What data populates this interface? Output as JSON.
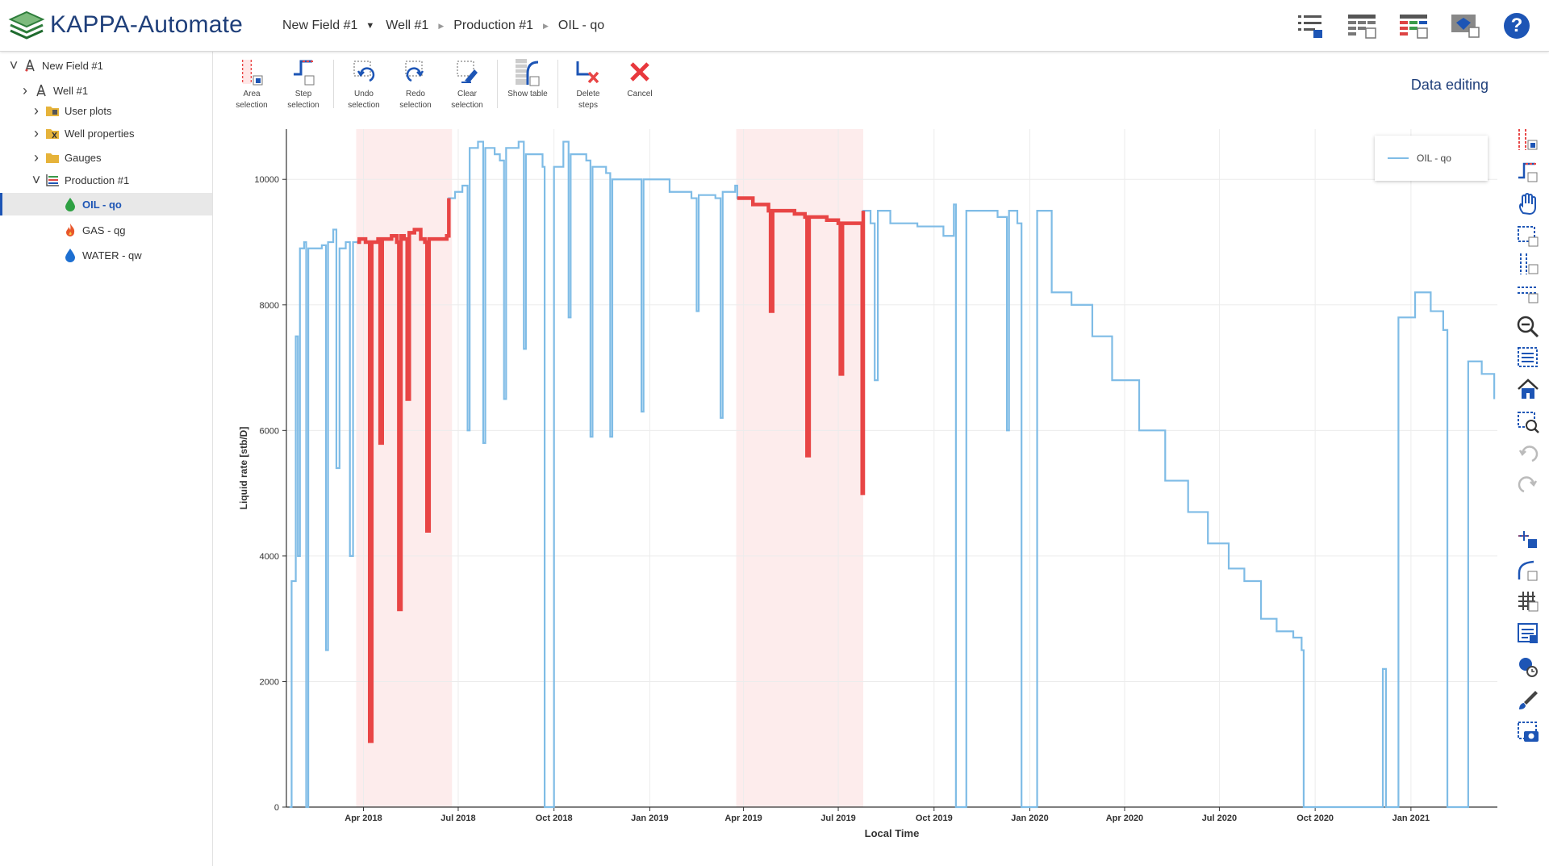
{
  "app": {
    "title": "KAPPA-Automate"
  },
  "breadcrumb": [
    {
      "label": "New Field #1",
      "sep": "down"
    },
    {
      "label": "Well #1",
      "sep": "right"
    },
    {
      "label": "Production #1",
      "sep": "right"
    },
    {
      "label": "OIL - qo",
      "sep": ""
    }
  ],
  "header_icons": [
    "list-view-icon",
    "table-view-icon",
    "colored-table-icon",
    "monitor-diamond-icon",
    "help-icon"
  ],
  "help_label": "?",
  "sidebar": {
    "items": [
      {
        "label": "New Field #1",
        "icon": "field-rig-icon",
        "level": 0,
        "chevron": "down"
      },
      {
        "label": "Well #1",
        "icon": "well-rig-icon",
        "level": 1,
        "chevron": "right"
      },
      {
        "label": "User plots",
        "icon": "folder-plots-icon",
        "level": 2,
        "chevron": "right"
      },
      {
        "label": "Well properties",
        "icon": "folder-properties-icon",
        "level": 2,
        "chevron": "right"
      },
      {
        "label": "Gauges",
        "icon": "folder-gauges-icon",
        "level": 2,
        "chevron": "right"
      },
      {
        "label": "Production #1",
        "icon": "production-icon",
        "level": 2,
        "chevron": "down"
      },
      {
        "label": "OIL - qo",
        "icon": "oil-drop-icon",
        "level": 3,
        "chevron": "",
        "selected": true
      },
      {
        "label": "GAS - qg",
        "icon": "gas-flame-icon",
        "level": 3,
        "chevron": ""
      },
      {
        "label": "WATER - qw",
        "icon": "water-drop-icon",
        "level": 3,
        "chevron": ""
      }
    ]
  },
  "toolbar": {
    "tools": [
      {
        "label": "Area\nselection",
        "icon": "area-selection-icon"
      },
      {
        "label": "Step\nselection",
        "icon": "step-selection-icon"
      },
      {
        "sep": true
      },
      {
        "label": "Undo\nselection",
        "icon": "undo-selection-icon"
      },
      {
        "label": "Redo\nselection",
        "icon": "redo-selection-icon"
      },
      {
        "label": "Clear\nselection",
        "icon": "clear-selection-icon"
      },
      {
        "sep": true
      },
      {
        "label": "Show table",
        "icon": "show-table-icon"
      },
      {
        "sep": true
      },
      {
        "label": "Delete\nsteps",
        "icon": "delete-steps-icon"
      },
      {
        "label": "Cancel",
        "icon": "cancel-icon"
      }
    ]
  },
  "mode_title": "Data editing",
  "rail_icons": [
    "area-selection-icon",
    "step-selection-icon",
    "pan-hand-icon",
    "box-select-icon",
    "vertical-select-icon",
    "horizontal-select-icon",
    "zoom-out-icon",
    "zoom-box-icon",
    "home-icon",
    "zoom-chart-icon",
    "undo-zoom-icon",
    "redo-zoom-icon",
    "add-point-icon",
    "curve-icon",
    "grid-icon",
    "legend-icon",
    "locate-icon",
    "brush-icon",
    "camera-icon"
  ],
  "colors": {
    "series": "#7fbce6",
    "selected": "#e84545",
    "band": "#fdecec",
    "accent": "#1d55b5"
  },
  "chart_data": {
    "type": "line",
    "xlabel": "Local Time",
    "ylabel": "Liquid rate [stb/D]",
    "ylim": [
      0,
      10800
    ],
    "y_ticks": [
      0,
      2000,
      4000,
      6000,
      8000,
      10000
    ],
    "x_ticks": [
      "Apr 2018",
      "Jul 2018",
      "Oct 2018",
      "Jan 2019",
      "Apr 2019",
      "Jul 2019",
      "Oct 2019",
      "Jan 2020",
      "Apr 2020",
      "Jul 2020",
      "Oct 2020",
      "Jan 2021"
    ],
    "x_range": [
      "2018-01-17",
      "2021-03-25"
    ],
    "selection_ranges": [
      [
        "2018-03-25",
        "2018-06-25"
      ],
      [
        "2019-03-25",
        "2019-07-25"
      ]
    ],
    "series": [
      {
        "name": "OIL - qo",
        "points": [
          [
            "2018-01-20",
            0
          ],
          [
            "2018-01-22",
            3600
          ],
          [
            "2018-01-26",
            7500
          ],
          [
            "2018-01-28",
            4000
          ],
          [
            "2018-01-30",
            8900
          ],
          [
            "2018-02-03",
            9000
          ],
          [
            "2018-02-05",
            0
          ],
          [
            "2018-02-07",
            8900
          ],
          [
            "2018-02-20",
            8950
          ],
          [
            "2018-02-24",
            2500
          ],
          [
            "2018-02-26",
            9000
          ],
          [
            "2018-03-03",
            9200
          ],
          [
            "2018-03-06",
            5400
          ],
          [
            "2018-03-09",
            8900
          ],
          [
            "2018-03-15",
            9000
          ],
          [
            "2018-03-19",
            4000
          ],
          [
            "2018-03-22",
            9000
          ],
          [
            "2018-03-26",
            9000
          ],
          [
            "2018-03-28",
            9050
          ],
          [
            "2018-04-03",
            9000
          ],
          [
            "2018-04-07",
            1050
          ],
          [
            "2018-04-09",
            9000
          ],
          [
            "2018-04-15",
            9050
          ],
          [
            "2018-04-17",
            5800
          ],
          [
            "2018-04-19",
            9050
          ],
          [
            "2018-04-28",
            9100
          ],
          [
            "2018-05-03",
            9000
          ],
          [
            "2018-05-05",
            3150
          ],
          [
            "2018-05-07",
            9100
          ],
          [
            "2018-05-10",
            9050
          ],
          [
            "2018-05-13",
            6500
          ],
          [
            "2018-05-15",
            9150
          ],
          [
            "2018-05-20",
            9200
          ],
          [
            "2018-05-26",
            9050
          ],
          [
            "2018-05-30",
            9000
          ],
          [
            "2018-06-01",
            4400
          ],
          [
            "2018-06-03",
            9050
          ],
          [
            "2018-06-20",
            9100
          ],
          [
            "2018-06-22",
            9700
          ],
          [
            "2018-06-28",
            9800
          ],
          [
            "2018-07-05",
            9900
          ],
          [
            "2018-07-10",
            6000
          ],
          [
            "2018-07-12",
            10500
          ],
          [
            "2018-07-20",
            10600
          ],
          [
            "2018-07-25",
            5800
          ],
          [
            "2018-07-27",
            10500
          ],
          [
            "2018-08-05",
            10400
          ],
          [
            "2018-08-10",
            10300
          ],
          [
            "2018-08-14",
            6500
          ],
          [
            "2018-08-16",
            10500
          ],
          [
            "2018-08-28",
            10600
          ],
          [
            "2018-09-02",
            7300
          ],
          [
            "2018-09-04",
            10400
          ],
          [
            "2018-09-20",
            10200
          ],
          [
            "2018-09-22",
            0
          ],
          [
            "2018-09-28",
            0
          ],
          [
            "2018-10-01",
            10200
          ],
          [
            "2018-10-10",
            10600
          ],
          [
            "2018-10-15",
            7800
          ],
          [
            "2018-10-17",
            10400
          ],
          [
            "2018-11-01",
            10300
          ],
          [
            "2018-11-05",
            5900
          ],
          [
            "2018-11-07",
            10200
          ],
          [
            "2018-11-20",
            10100
          ],
          [
            "2018-11-24",
            5900
          ],
          [
            "2018-11-26",
            10000
          ],
          [
            "2018-12-20",
            10000
          ],
          [
            "2018-12-24",
            6300
          ],
          [
            "2018-12-26",
            10000
          ],
          [
            "2019-01-20",
            9800
          ],
          [
            "2019-02-10",
            9700
          ],
          [
            "2019-02-15",
            7900
          ],
          [
            "2019-02-17",
            9750
          ],
          [
            "2019-03-05",
            9700
          ],
          [
            "2019-03-10",
            6200
          ],
          [
            "2019-03-12",
            9800
          ],
          [
            "2019-03-24",
            9900
          ],
          [
            "2019-03-26",
            9700
          ],
          [
            "2019-04-10",
            9600
          ],
          [
            "2019-04-25",
            9500
          ],
          [
            "2019-04-27",
            7900
          ],
          [
            "2019-04-29",
            9500
          ],
          [
            "2019-05-20",
            9450
          ],
          [
            "2019-05-30",
            9400
          ],
          [
            "2019-06-01",
            5600
          ],
          [
            "2019-06-03",
            9400
          ],
          [
            "2019-06-20",
            9350
          ],
          [
            "2019-07-01",
            9300
          ],
          [
            "2019-07-03",
            6900
          ],
          [
            "2019-07-05",
            9300
          ],
          [
            "2019-07-22",
            9300
          ],
          [
            "2019-07-24",
            5000
          ],
          [
            "2019-07-25",
            9500
          ],
          [
            "2019-08-01",
            9300
          ],
          [
            "2019-08-05",
            6800
          ],
          [
            "2019-08-08",
            9500
          ],
          [
            "2019-08-20",
            9300
          ],
          [
            "2019-09-15",
            9250
          ],
          [
            "2019-10-10",
            9100
          ],
          [
            "2019-10-20",
            9600
          ],
          [
            "2019-10-22",
            0
          ],
          [
            "2019-10-28",
            0
          ],
          [
            "2019-11-01",
            9500
          ],
          [
            "2019-12-01",
            9400
          ],
          [
            "2019-12-10",
            6000
          ],
          [
            "2019-12-12",
            9500
          ],
          [
            "2019-12-20",
            9300
          ],
          [
            "2019-12-24",
            0
          ],
          [
            "2020-01-05",
            0
          ],
          [
            "2020-01-08",
            9500
          ],
          [
            "2020-01-22",
            8200
          ],
          [
            "2020-02-10",
            8000
          ],
          [
            "2020-03-01",
            7500
          ],
          [
            "2020-03-20",
            6800
          ],
          [
            "2020-04-15",
            6000
          ],
          [
            "2020-05-10",
            5200
          ],
          [
            "2020-06-01",
            4700
          ],
          [
            "2020-06-20",
            4200
          ],
          [
            "2020-07-10",
            3800
          ],
          [
            "2020-07-25",
            3600
          ],
          [
            "2020-08-10",
            3000
          ],
          [
            "2020-08-25",
            2800
          ],
          [
            "2020-09-10",
            2700
          ],
          [
            "2020-09-18",
            2500
          ],
          [
            "2020-09-20",
            0
          ],
          [
            "2020-12-01",
            0
          ],
          [
            "2020-12-05",
            2200
          ],
          [
            "2020-12-08",
            0
          ],
          [
            "2020-12-14",
            0
          ],
          [
            "2020-12-20",
            7800
          ],
          [
            "2021-01-05",
            8200
          ],
          [
            "2021-01-20",
            7900
          ],
          [
            "2021-02-01",
            7600
          ],
          [
            "2021-02-05",
            0
          ],
          [
            "2021-02-20",
            0
          ],
          [
            "2021-02-25",
            7100
          ],
          [
            "2021-03-10",
            6900
          ],
          [
            "2021-03-22",
            6500
          ]
        ]
      }
    ]
  }
}
